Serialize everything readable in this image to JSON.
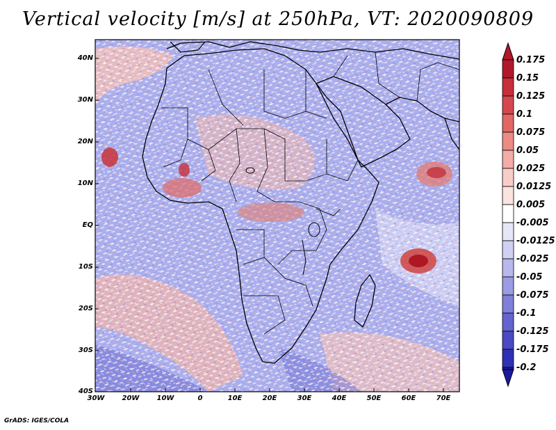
{
  "title": "Vertical velocity [m/s] at 250hPa, VT: 2020090809",
  "footer": "GrADS: IGES/COLA",
  "axes": {
    "lat_labels": [
      "40N",
      "30N",
      "20N",
      "10N",
      "EQ",
      "10S",
      "20S",
      "30S",
      "40S"
    ],
    "lon_labels": [
      "30W",
      "20W",
      "10W",
      "0",
      "10E",
      "20E",
      "30E",
      "40E",
      "50E",
      "60E",
      "70E"
    ]
  },
  "colorbar": {
    "labels": [
      "0.175",
      "0.15",
      "0.125",
      "0.1",
      "0.075",
      "0.05",
      "0.025",
      "0.0125",
      "0.005",
      "-0.005",
      "-0.0125",
      "-0.025",
      "-0.05",
      "-0.075",
      "-0.1",
      "-0.125",
      "-0.175",
      "-0.2"
    ],
    "colors": [
      "#b2182b",
      "#c6303b",
      "#d6474d",
      "#e26763",
      "#ec8a84",
      "#f3aca6",
      "#f9cdc7",
      "#fbe3df",
      "#ffffff",
      "#e6e6f8",
      "#d0d0f2",
      "#b8b8ec",
      "#9c9ce4",
      "#8080da",
      "#6464d0",
      "#4a4ac4",
      "#3030b4",
      "#1a1aa0"
    ]
  },
  "map_colors": {
    "blue": "#9aa0ec",
    "light_blue": "#c4c8f4",
    "pink": "#f0b0a8",
    "red": "#d8504e",
    "white": "#ffffff"
  }
}
